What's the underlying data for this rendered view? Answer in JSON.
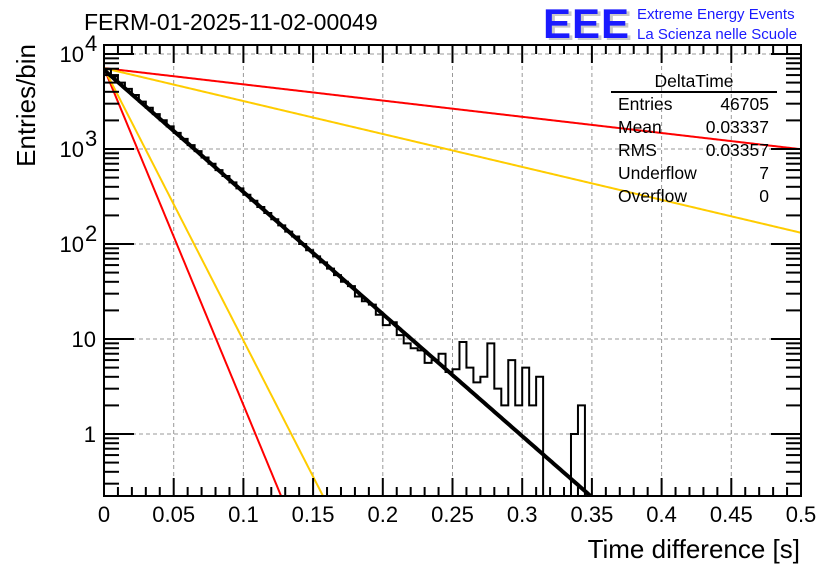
{
  "chart_data": {
    "type": "histogram",
    "title": "FERM-01-2025-11-02-00049",
    "xlabel": "Time difference [s]",
    "ylabel": "Entries/bin",
    "xlim": [
      0,
      0.5
    ],
    "ylim": [
      0.22,
      12000
    ],
    "yscale": "log",
    "grid": true,
    "x_ticks": [
      "0",
      "0.05",
      "0.1",
      "0.15",
      "0.2",
      "0.25",
      "0.3",
      "0.35",
      "0.4",
      "0.45",
      "0.5"
    ],
    "x_tick_values": [
      0,
      0.05,
      0.1,
      0.15,
      0.2,
      0.25,
      0.3,
      0.35,
      0.4,
      0.45,
      0.5
    ],
    "y_ticks": [
      {
        "value": 1,
        "base": "1",
        "exp": ""
      },
      {
        "value": 10,
        "base": "10",
        "exp": ""
      },
      {
        "value": 100,
        "base": "10",
        "exp": "2"
      },
      {
        "value": 1000,
        "base": "10",
        "exp": "3"
      },
      {
        "value": 10000,
        "base": "10",
        "exp": "4"
      }
    ],
    "bin_width": 0.005,
    "histogram": {
      "name": "DeltaTime",
      "color": "#000000",
      "counts": [
        6900,
        5800,
        5000,
        4300,
        3700,
        3150,
        2720,
        2330,
        2010,
        1730,
        1480,
        1280,
        1100,
        950,
        815,
        700,
        600,
        520,
        445,
        385,
        330,
        285,
        245,
        212,
        182,
        157,
        135,
        120,
        100,
        86,
        74,
        64,
        55,
        47,
        40,
        36,
        28,
        25,
        23,
        18,
        14,
        15,
        11,
        9,
        8,
        7.6,
        5.6,
        6.0,
        7.0,
        4.5,
        4.8,
        9.3,
        5.0,
        3.5,
        4.0,
        9.0,
        3.0,
        2.0,
        6.0,
        2.0,
        5.0,
        2.0,
        4.0,
        0,
        0,
        0,
        0,
        1,
        2,
        0,
        0,
        0,
        0,
        0,
        0,
        0,
        0,
        0,
        0,
        0,
        0,
        0,
        0,
        0,
        0,
        0,
        0,
        0,
        0,
        0,
        0,
        0,
        0,
        0,
        0,
        0,
        0,
        0,
        0,
        0
      ]
    },
    "fit_curves": [
      {
        "name": "fit",
        "color": "#000000",
        "amplitude": 6800,
        "tau": 0.0338,
        "width": "thick"
      },
      {
        "name": "red-steep",
        "color": "#ff0000",
        "amplitude": 7100,
        "tau": 0.01225
      },
      {
        "name": "yellow-steep",
        "color": "#ffcc00",
        "amplitude": 7100,
        "tau": 0.01515
      },
      {
        "name": "red-shallow",
        "color": "#ff0000",
        "amplitude": 7100,
        "tau": 0.2544
      },
      {
        "name": "yellow-shallow",
        "color": "#ffcc00",
        "amplitude": 7100,
        "tau": 0.1253
      }
    ],
    "stats_box": {
      "title": "DeltaTime",
      "rows": [
        {
          "label": "Entries",
          "value": "46705"
        },
        {
          "label": "Mean",
          "value": "0.03337"
        },
        {
          "label": "RMS",
          "value": "0.03357"
        },
        {
          "label": "Underflow",
          "value": "7"
        },
        {
          "label": "Overflow",
          "value": "0"
        }
      ],
      "placement": "top-right"
    }
  },
  "logo": {
    "mark": "EEE",
    "line1": "Extreme Energy Events",
    "line2": "La Scienza nelle Scuole",
    "color": "#1a1aff"
  }
}
